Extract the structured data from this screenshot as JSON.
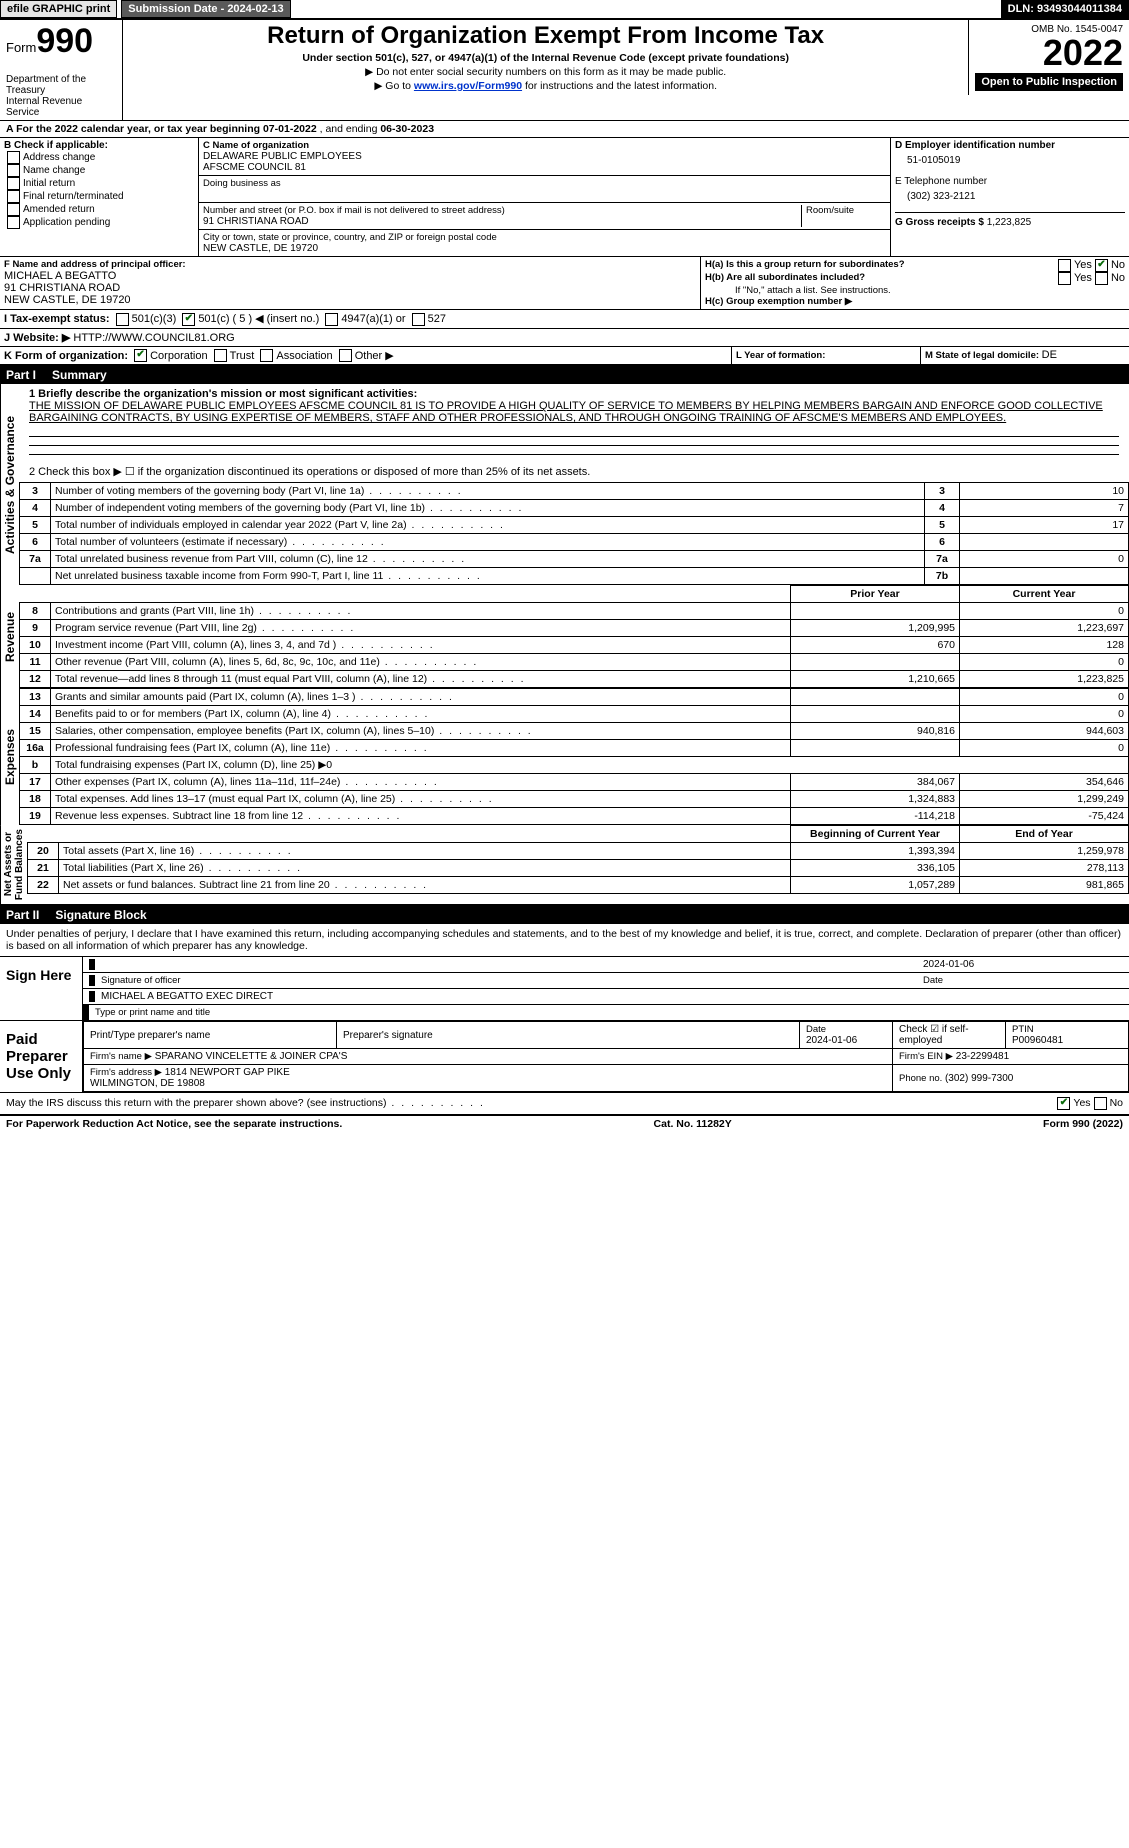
{
  "topbar": {
    "efile": "efile GRAPHIC print",
    "submission": "Submission Date - 2024-02-13",
    "dln": "DLN: 93493044011384"
  },
  "header": {
    "form_label": "Form",
    "form_number": "990",
    "title": "Return of Organization Exempt From Income Tax",
    "subtitle": "Under section 501(c), 527, or 4947(a)(1) of the Internal Revenue Code (except private foundations)",
    "ssn_note": "▶ Do not enter social security numbers on this form as it may be made public.",
    "goto": "▶ Go to ",
    "goto_link": "www.irs.gov/Form990",
    "goto_suffix": " for instructions and the latest information.",
    "dept": "Department of the Treasury\nInternal Revenue Service",
    "omb": "OMB No. 1545-0047",
    "year": "2022",
    "open_badge": "Open to Public Inspection"
  },
  "period": {
    "label_a": "A For the 2022 calendar year, or tax year beginning ",
    "begin": "07-01-2022",
    "mid": " , and ending ",
    "end": "06-30-2023"
  },
  "section_b": {
    "label": "B Check if applicable:",
    "opts": [
      "Address change",
      "Name change",
      "Initial return",
      "Final return/terminated",
      "Amended return",
      "Application pending"
    ]
  },
  "section_c": {
    "name_label": "C Name of organization",
    "name": "DELAWARE PUBLIC EMPLOYEES\nAFSCME COUNCIL 81",
    "dba_label": "Doing business as",
    "dba": "",
    "street_label": "Number and street (or P.O. box if mail is not delivered to street address)",
    "room_label": "Room/suite",
    "street": "91 CHRISTIANA ROAD",
    "city_label": "City or town, state or province, country, and ZIP or foreign postal code",
    "city": "NEW CASTLE, DE  19720"
  },
  "section_d": {
    "label": "D Employer identification number",
    "ein": "51-0105019"
  },
  "section_e": {
    "label": "E Telephone number",
    "phone": "(302) 323-2121"
  },
  "section_g": {
    "label": "G Gross receipts $ ",
    "amount": "1,223,825"
  },
  "section_f": {
    "label": "F  Name and address of principal officer:",
    "name": "MICHAEL A BEGATTO",
    "addr1": "91 CHRISTIANA ROAD",
    "addr2": "NEW CASTLE, DE  19720"
  },
  "section_h": {
    "a_label": "H(a)  Is this a group return for subordinates?",
    "b_label": "H(b)  Are all subordinates included?",
    "b_note": "If \"No,\" attach a list. See instructions.",
    "c_label": "H(c)  Group exemption number ▶",
    "yes": "Yes",
    "no": "No"
  },
  "section_i": {
    "label": "I  Tax-exempt status:",
    "o1": "501(c)(3)",
    "o2": "501(c) ( 5 ) ◀ (insert no.)",
    "o3": "4947(a)(1) or",
    "o4": "527"
  },
  "section_j": {
    "label": "J  Website: ▶  ",
    "value": "HTTP://WWW.COUNCIL81.ORG"
  },
  "section_k": {
    "label": "K Form of organization:",
    "opts": [
      "Corporation",
      "Trust",
      "Association",
      "Other ▶"
    ]
  },
  "section_l": {
    "label": "L Year of formation:",
    "value": ""
  },
  "section_m": {
    "label": "M State of legal domicile: ",
    "value": "DE"
  },
  "part1": {
    "tag": "Part I",
    "title": "Summary"
  },
  "summary": {
    "line1_label": "1  Briefly describe the organization's mission or most significant activities:",
    "mission": "THE MISSION OF DELAWARE PUBLIC EMPLOYEES AFSCME COUNCIL 81 IS TO PROVIDE A HIGH QUALITY OF SERVICE TO MEMBERS BY HELPING MEMBERS BARGAIN AND ENFORCE GOOD COLLECTIVE BARGAINING CONTRACTS, BY USING EXPERTISE OF MEMBERS, STAFF AND OTHER PROFESSIONALS, AND THROUGH ONGOING TRAINING OF AFSCME'S MEMBERS AND EMPLOYEES.",
    "line2_label": "2  Check this box ▶ ☐  if the organization discontinued its operations or disposed of more than 25% of its net assets.",
    "rows_ag": [
      {
        "n": "3",
        "label": "Number of voting members of the governing body (Part VI, line 1a)",
        "box": "3",
        "val": "10"
      },
      {
        "n": "4",
        "label": "Number of independent voting members of the governing body (Part VI, line 1b)",
        "box": "4",
        "val": "7"
      },
      {
        "n": "5",
        "label": "Total number of individuals employed in calendar year 2022 (Part V, line 2a)",
        "box": "5",
        "val": "17"
      },
      {
        "n": "6",
        "label": "Total number of volunteers (estimate if necessary)",
        "box": "6",
        "val": ""
      },
      {
        "n": "7a",
        "label": "Total unrelated business revenue from Part VIII, column (C), line 12",
        "box": "7a",
        "val": "0"
      },
      {
        "n": "",
        "label": "Net unrelated business taxable income from Form 990-T, Part I, line 11",
        "box": "7b",
        "val": ""
      }
    ],
    "col_headers": {
      "prior": "Prior Year",
      "current": "Current Year"
    },
    "revenue_rows": [
      {
        "n": "8",
        "label": "Contributions and grants (Part VIII, line 1h)",
        "prior": "",
        "current": "0"
      },
      {
        "n": "9",
        "label": "Program service revenue (Part VIII, line 2g)",
        "prior": "1,209,995",
        "current": "1,223,697"
      },
      {
        "n": "10",
        "label": "Investment income (Part VIII, column (A), lines 3, 4, and 7d )",
        "prior": "670",
        "current": "128"
      },
      {
        "n": "11",
        "label": "Other revenue (Part VIII, column (A), lines 5, 6d, 8c, 9c, 10c, and 11e)",
        "prior": "",
        "current": "0"
      },
      {
        "n": "12",
        "label": "Total revenue—add lines 8 through 11 (must equal Part VIII, column (A), line 12)",
        "prior": "1,210,665",
        "current": "1,223,825"
      }
    ],
    "expense_rows": [
      {
        "n": "13",
        "label": "Grants and similar amounts paid (Part IX, column (A), lines 1–3 )",
        "prior": "",
        "current": "0"
      },
      {
        "n": "14",
        "label": "Benefits paid to or for members (Part IX, column (A), line 4)",
        "prior": "",
        "current": "0"
      },
      {
        "n": "15",
        "label": "Salaries, other compensation, employee benefits (Part IX, column (A), lines 5–10)",
        "prior": "940,816",
        "current": "944,603"
      },
      {
        "n": "16a",
        "label": "Professional fundraising fees (Part IX, column (A), line 11e)",
        "prior": "",
        "current": "0"
      },
      {
        "n": "b",
        "label": "Total fundraising expenses (Part IX, column (D), line 25) ▶0",
        "prior": "—",
        "current": "—"
      },
      {
        "n": "17",
        "label": "Other expenses (Part IX, column (A), lines 11a–11d, 11f–24e)",
        "prior": "384,067",
        "current": "354,646"
      },
      {
        "n": "18",
        "label": "Total expenses. Add lines 13–17 (must equal Part IX, column (A), line 25)",
        "prior": "1,324,883",
        "current": "1,299,249"
      },
      {
        "n": "19",
        "label": "Revenue less expenses. Subtract line 18 from line 12",
        "prior": "-114,218",
        "current": "-75,424"
      }
    ],
    "net_headers": {
      "begin": "Beginning of Current Year",
      "end": "End of Year"
    },
    "net_rows": [
      {
        "n": "20",
        "label": "Total assets (Part X, line 16)",
        "prior": "1,393,394",
        "current": "1,259,978"
      },
      {
        "n": "21",
        "label": "Total liabilities (Part X, line 26)",
        "prior": "336,105",
        "current": "278,113"
      },
      {
        "n": "22",
        "label": "Net assets or fund balances. Subtract line 21 from line 20",
        "prior": "1,057,289",
        "current": "981,865"
      }
    ],
    "vlabels": {
      "ag": "Activities & Governance",
      "rev": "Revenue",
      "exp": "Expenses",
      "net": "Net Assets or\nFund Balances"
    }
  },
  "part2": {
    "tag": "Part II",
    "title": "Signature Block"
  },
  "penalty": "Under penalties of perjury, I declare that I have examined this return, including accompanying schedules and statements, and to the best of my knowledge and belief, it is true, correct, and complete. Declaration of preparer (other than officer) is based on all information of which preparer has any knowledge.",
  "sign": {
    "left": "Sign Here",
    "sig_date": "2024-01-06",
    "sig_label": "Signature of officer",
    "date_label": "Date",
    "name": "MICHAEL A BEGATTO  EXEC DIRECT",
    "name_label": "Type or print name and title"
  },
  "paid": {
    "left": "Paid Preparer Use Only",
    "h1": "Print/Type preparer's name",
    "h2": "Preparer's signature",
    "h3": "Date",
    "date": "2024-01-06",
    "h4": "Check ☑ if self-employed",
    "h5": "PTIN",
    "ptin": "P00960481",
    "firm_name_label": "Firm's name    ▶",
    "firm_name": "SPARANO VINCELETTE & JOINER CPA'S",
    "firm_ein_label": "Firm's EIN ▶",
    "firm_ein": "23-2299481",
    "firm_addr_label": "Firm's address ▶",
    "firm_addr": "1814 NEWPORT GAP PIKE\nWILMINGTON, DE  19808",
    "phone_label": "Phone no. ",
    "phone": "(302) 999-7300"
  },
  "discuss": {
    "label": "May the IRS discuss this return with the preparer shown above? (see instructions)",
    "yes": "Yes",
    "no": "No"
  },
  "footer": {
    "left": "For Paperwork Reduction Act Notice, see the separate instructions.",
    "mid": "Cat. No. 11282Y",
    "right": "Form 990 (2022)"
  },
  "colors": {
    "grey_bg": "#e6e6e6",
    "dark_bg": "#5a5a5a",
    "link": "#0033cc"
  }
}
